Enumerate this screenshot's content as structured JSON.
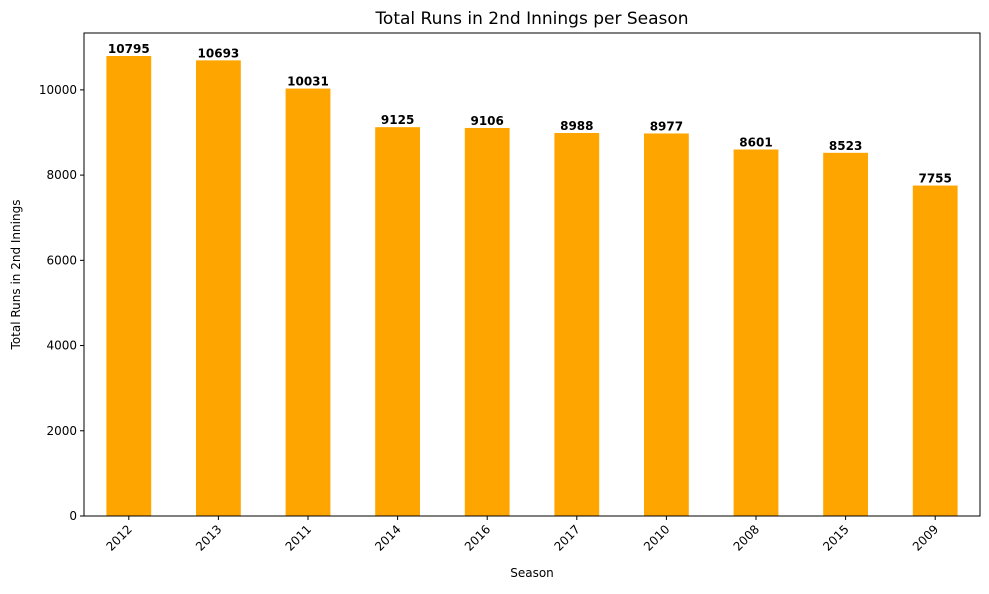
{
  "chart_data": {
    "type": "bar",
    "title": "Total Runs in 2nd Innings per Season",
    "xlabel": "Season",
    "ylabel": "Total Runs in 2nd Innings",
    "categories": [
      "2012",
      "2013",
      "2011",
      "2014",
      "2016",
      "2017",
      "2010",
      "2008",
      "2015",
      "2009"
    ],
    "values": [
      10795,
      10693,
      10031,
      9125,
      9106,
      8988,
      8977,
      8601,
      8523,
      7755
    ],
    "data_labels": [
      "10795",
      "10693",
      "10031",
      "9125",
      "9106",
      "8988",
      "8977",
      "8601",
      "8523",
      "7755"
    ],
    "ylim": [
      0,
      11334.75
    ],
    "yticks": [
      0,
      2000,
      4000,
      6000,
      8000,
      10000
    ],
    "ytick_labels": [
      "0",
      "2000",
      "4000",
      "6000",
      "8000",
      "10000"
    ],
    "bar_color": "#FFA500",
    "grid": false,
    "legend": "none"
  }
}
